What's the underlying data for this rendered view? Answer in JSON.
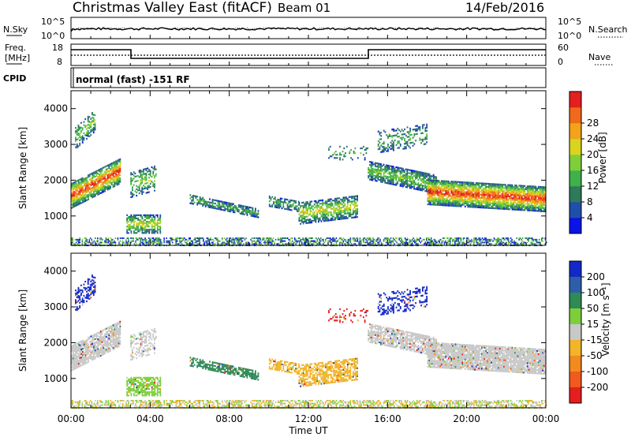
{
  "header": {
    "title": "Christmas Valley East (fitACF)",
    "beam": "Beam 01",
    "date": "14/Feb/2016"
  },
  "panels": {
    "nsky": {
      "label": "N.Sky",
      "tick_top": "10^5",
      "tick_bottom": "10^0"
    },
    "nsearch": {
      "label": "N.Search",
      "tick_top": "10^5",
      "tick_bottom": "10^0"
    },
    "freq": {
      "label_line1": "Freq.",
      "label_line2": "[MHz]",
      "tick_top": "18",
      "tick_bottom": "8"
    },
    "nave": {
      "label": "Nave",
      "tick_top": "60",
      "tick_bottom": "0"
    },
    "cpid": {
      "label": "CPID",
      "text": "normal (fast) -151 RF"
    }
  },
  "chart_data": [
    {
      "type": "heatmap",
      "name": "power",
      "ylabel": "Slant Range [km]",
      "ylim": [
        180,
        4500
      ],
      "yticks": [
        "1000",
        "2000",
        "3000",
        "4000"
      ],
      "xlabel": "",
      "colorbar": {
        "label": "Power [dB]",
        "ticks": [
          "4",
          "8",
          "12",
          "16",
          "20",
          "24",
          "28"
        ],
        "colors": [
          "#0a14e6",
          "#1f4fa8",
          "#2e7a5a",
          "#3fb04a",
          "#7fcf3a",
          "#d9d41e",
          "#f2a31a",
          "#f06a1b",
          "#e51e1e"
        ]
      }
    },
    {
      "type": "heatmap",
      "name": "velocity",
      "ylabel": "Slant Range [km]",
      "ylim": [
        180,
        4500
      ],
      "yticks": [
        "1000",
        "2000",
        "3000",
        "4000"
      ],
      "xlabel": "Time UT",
      "xticks": [
        "00:00",
        "04:00",
        "08:00",
        "12:00",
        "16:00",
        "20:00",
        "00:00"
      ],
      "colorbar": {
        "label": "Velocity [m s⁻¹]",
        "ticks": [
          "200",
          "100",
          "50",
          "15",
          "-15",
          "-50",
          "-100",
          "-200"
        ],
        "colors": [
          "#1428c8",
          "#2c5fa8",
          "#2f8a55",
          "#7ccf3a",
          "#c8c8c8",
          "#f2b428",
          "#f28a1e",
          "#f05a1e",
          "#e51e1e"
        ]
      }
    }
  ]
}
